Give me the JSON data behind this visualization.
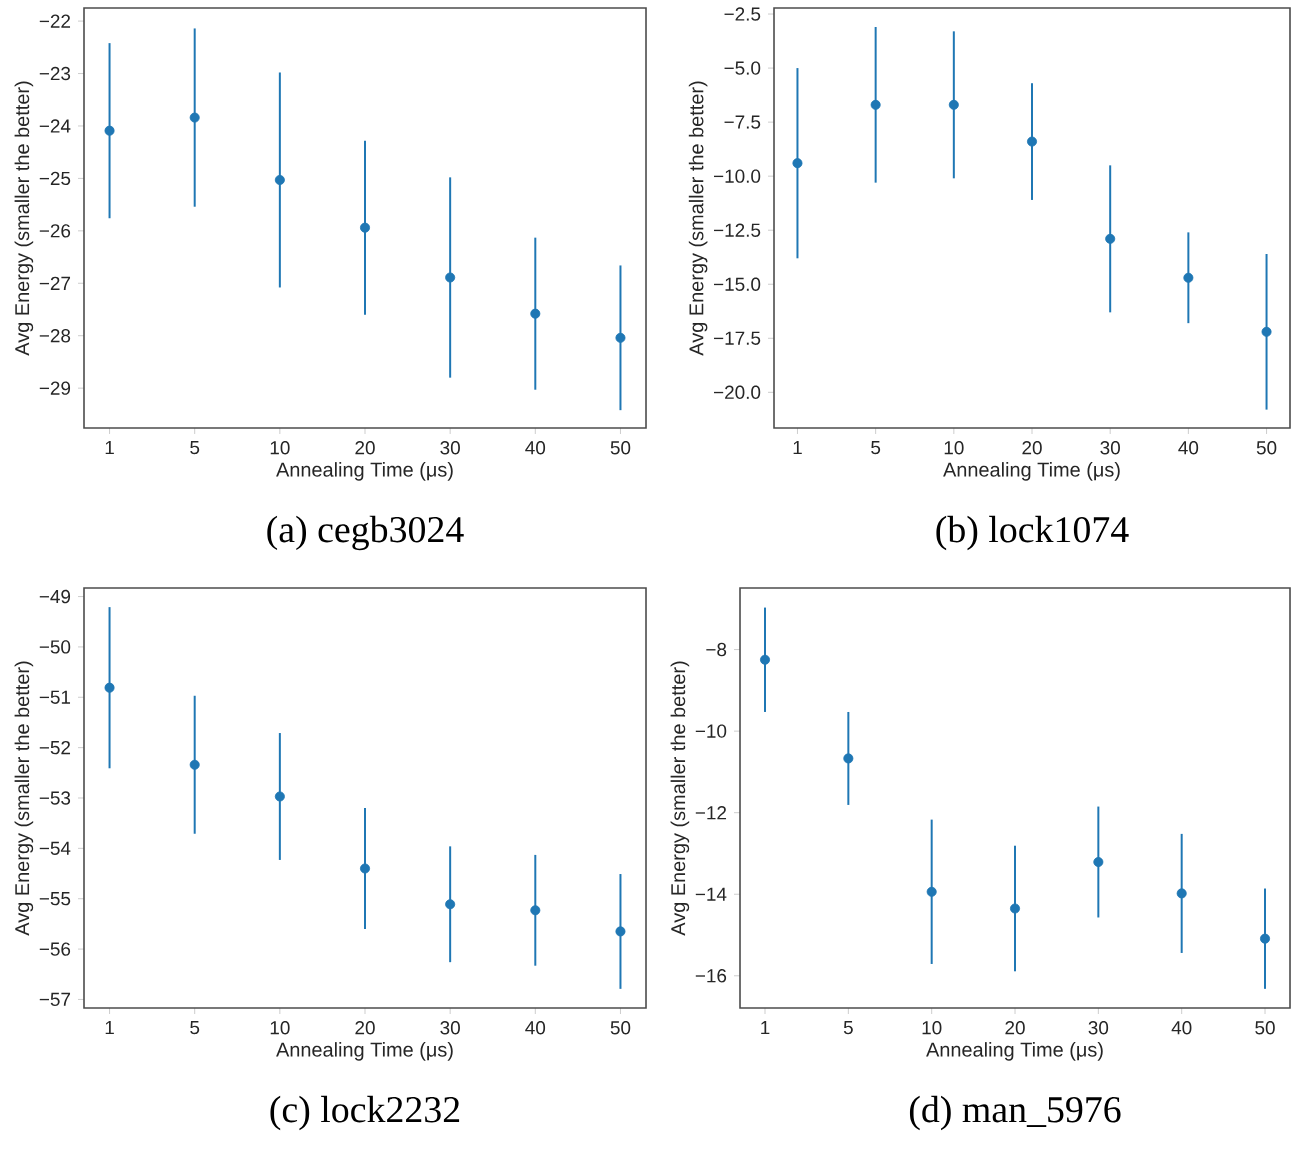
{
  "chart_data": [
    {
      "type": "scatter",
      "xlabel": "Annealing Time (μs)",
      "ylabel": "Avg Energy (smaller the better)",
      "annotations": [
        "(a) cegb3024"
      ],
      "categories": [
        "1",
        "5",
        "10",
        "20",
        "30",
        "40",
        "50"
      ],
      "grid": false,
      "series": [
        {
          "color": "#1f77b4",
          "values": [
            -24.09,
            -23.84,
            -25.03,
            -25.94,
            -26.89,
            -27.58,
            -28.04
          ],
          "errors": [
            1.67,
            1.7,
            2.05,
            1.66,
            1.91,
            1.45,
            1.38
          ]
        }
      ],
      "ylim": [
        -29.76,
        -21.75
      ],
      "yticks": [
        {
          "value": -29,
          "label": "−29"
        },
        {
          "value": -28,
          "label": "−28"
        },
        {
          "value": -27,
          "label": "−27"
        },
        {
          "value": -26,
          "label": "−26"
        },
        {
          "value": -25,
          "label": "−25"
        },
        {
          "value": -24,
          "label": "−24"
        },
        {
          "value": -23,
          "label": "−23"
        },
        {
          "value": -22,
          "label": "−22"
        }
      ]
    },
    {
      "type": "scatter",
      "xlabel": "Annealing Time (μs)",
      "ylabel": "Avg Energy (smaller the better)",
      "annotations": [
        "(b) lock1074"
      ],
      "categories": [
        "1",
        "5",
        "10",
        "20",
        "30",
        "40",
        "50"
      ],
      "grid": false,
      "series": [
        {
          "color": "#1f77b4",
          "values": [
            -9.4,
            -6.7,
            -6.7,
            -8.4,
            -12.9,
            -14.7,
            -17.2
          ],
          "errors": [
            4.4,
            3.6,
            3.4,
            2.7,
            3.4,
            2.1,
            3.6
          ]
        }
      ],
      "ylim": [
        -21.65,
        -2.22
      ],
      "yticks": [
        {
          "value": -20,
          "label": "−20.0"
        },
        {
          "value": -17.5,
          "label": "−17.5"
        },
        {
          "value": -15,
          "label": "−15.0"
        },
        {
          "value": -12.5,
          "label": "−12.5"
        },
        {
          "value": -10,
          "label": "−10.0"
        },
        {
          "value": -7.5,
          "label": "−7.5"
        },
        {
          "value": -5,
          "label": "−5.0"
        },
        {
          "value": -2.5,
          "label": "−2.5"
        }
      ]
    },
    {
      "type": "scatter",
      "xlabel": "Annealing Time (μs)",
      "ylabel": "Avg Energy (smaller the better)",
      "annotations": [
        "(c) lock2232"
      ],
      "categories": [
        "1",
        "5",
        "10",
        "20",
        "30",
        "40",
        "50"
      ],
      "grid": false,
      "series": [
        {
          "color": "#1f77b4",
          "values": [
            -50.81,
            -52.34,
            -52.97,
            -54.4,
            -55.11,
            -55.23,
            -55.65
          ],
          "errors": [
            1.6,
            1.37,
            1.26,
            1.2,
            1.15,
            1.1,
            1.14
          ]
        }
      ],
      "ylim": [
        -57.17,
        -48.83
      ],
      "yticks": [
        {
          "value": -57,
          "label": "−57"
        },
        {
          "value": -56,
          "label": "−56"
        },
        {
          "value": -55,
          "label": "−55"
        },
        {
          "value": -54,
          "label": "−54"
        },
        {
          "value": -53,
          "label": "−53"
        },
        {
          "value": -52,
          "label": "−52"
        },
        {
          "value": -51,
          "label": "−51"
        },
        {
          "value": -50,
          "label": "−50"
        },
        {
          "value": -49,
          "label": "−49"
        }
      ]
    },
    {
      "type": "scatter",
      "xlabel": "Annealing Time (μs)",
      "ylabel": "Avg Energy (smaller the better)",
      "annotations": [
        "(d) man_5976"
      ],
      "categories": [
        "1",
        "5",
        "10",
        "20",
        "30",
        "40",
        "50"
      ],
      "grid": false,
      "series": [
        {
          "color": "#1f77b4",
          "values": [
            -8.25,
            -10.67,
            -13.94,
            -14.35,
            -13.21,
            -13.98,
            -15.09
          ],
          "errors": [
            1.28,
            1.14,
            1.77,
            1.54,
            1.36,
            1.46,
            1.23
          ]
        }
      ],
      "ylim": [
        -16.79,
        -6.49
      ],
      "yticks": [
        {
          "value": -16,
          "label": "−16"
        },
        {
          "value": -14,
          "label": "−14"
        },
        {
          "value": -12,
          "label": "−12"
        },
        {
          "value": -10,
          "label": "−10"
        },
        {
          "value": -8,
          "label": "−8"
        }
      ]
    }
  ]
}
